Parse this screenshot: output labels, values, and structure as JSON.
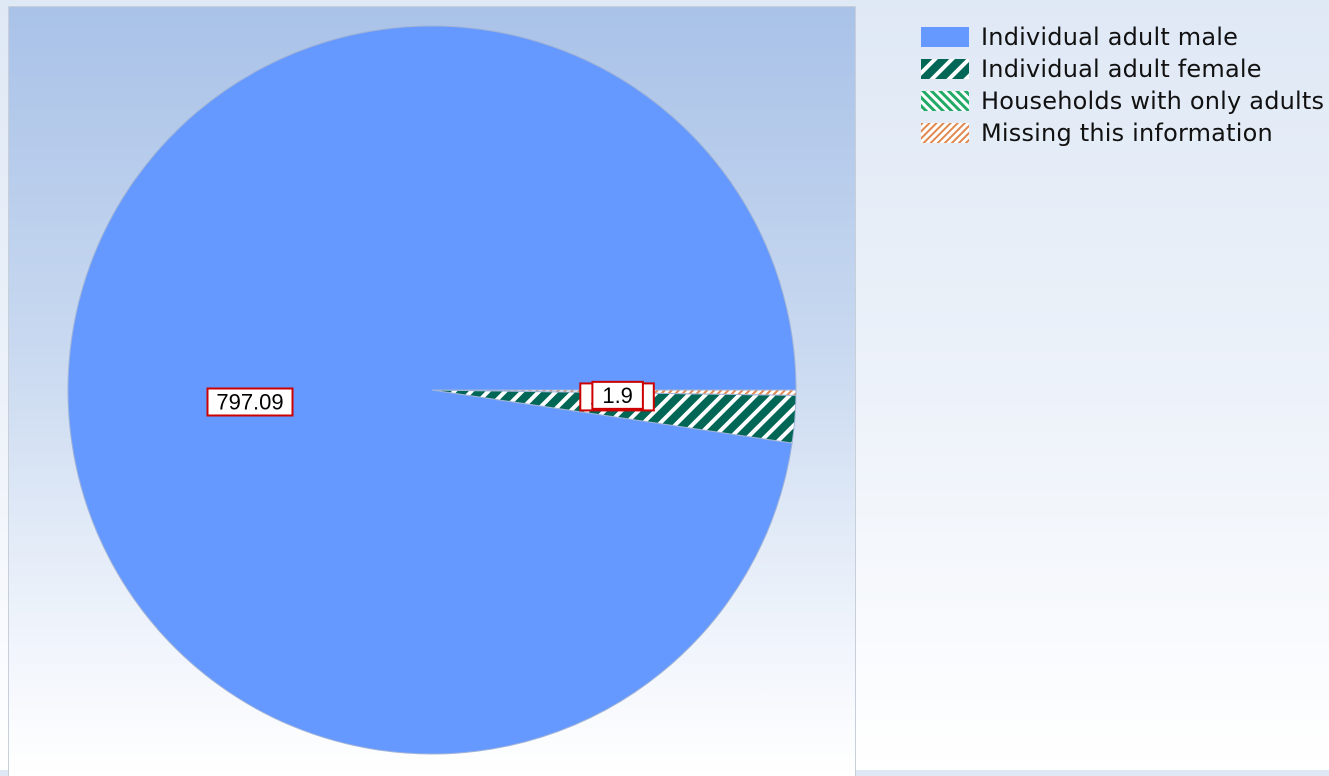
{
  "chart_data": {
    "type": "pie",
    "slices": [
      {
        "name": "Individual adult male",
        "value": 797.09,
        "label": "797.09",
        "color": "#6699ff",
        "pattern": "solid"
      },
      {
        "name": "Individual adult female",
        "value": 17.09,
        "label": "17.09",
        "color": "#006655",
        "pattern": "hatch-forward"
      },
      {
        "name": "Households with only adults",
        "value": 0,
        "label": "",
        "color": "#22aa66",
        "pattern": "hatch-back"
      },
      {
        "name": "Missing this information",
        "value": 1.9,
        "label": "1.9",
        "color": "#e08850",
        "pattern": "hatch-forward"
      }
    ],
    "legend_position": "top-right",
    "title": "",
    "start_angle_deg": 0,
    "direction": "counterclockwise"
  }
}
